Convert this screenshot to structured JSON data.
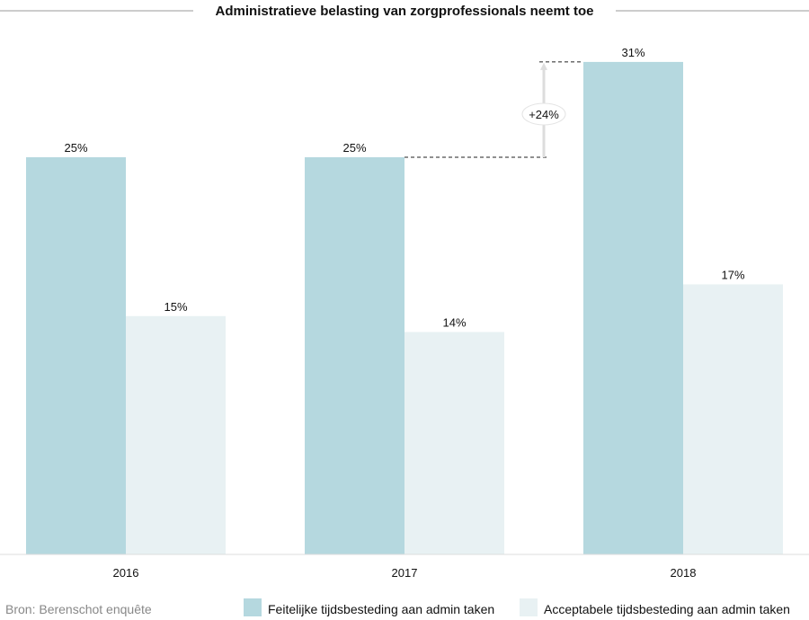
{
  "chart_data": {
    "type": "bar",
    "title": "Administratieve belasting van zorgprofessionals neemt toe",
    "categories": [
      "2016",
      "2017",
      "2018"
    ],
    "series": [
      {
        "name": "Feitelijke tijdsbesteding aan admin taken",
        "values": [
          25,
          25,
          31
        ],
        "labels": [
          "25%",
          "25%",
          "31%"
        ],
        "color": "#b5d8df"
      },
      {
        "name": "Acceptabele tijdsbesteding aan admin taken",
        "values": [
          15,
          14,
          17
        ],
        "labels": [
          "15%",
          "14%",
          "17%"
        ],
        "color": "#e8f1f3"
      }
    ],
    "annotation": {
      "text": "+24%",
      "from_category": "2017",
      "to_category": "2018"
    },
    "ylim": [
      0,
      31
    ],
    "grid": false,
    "legend": "bottom-right",
    "source": "Bron: Berenschot enquête"
  }
}
